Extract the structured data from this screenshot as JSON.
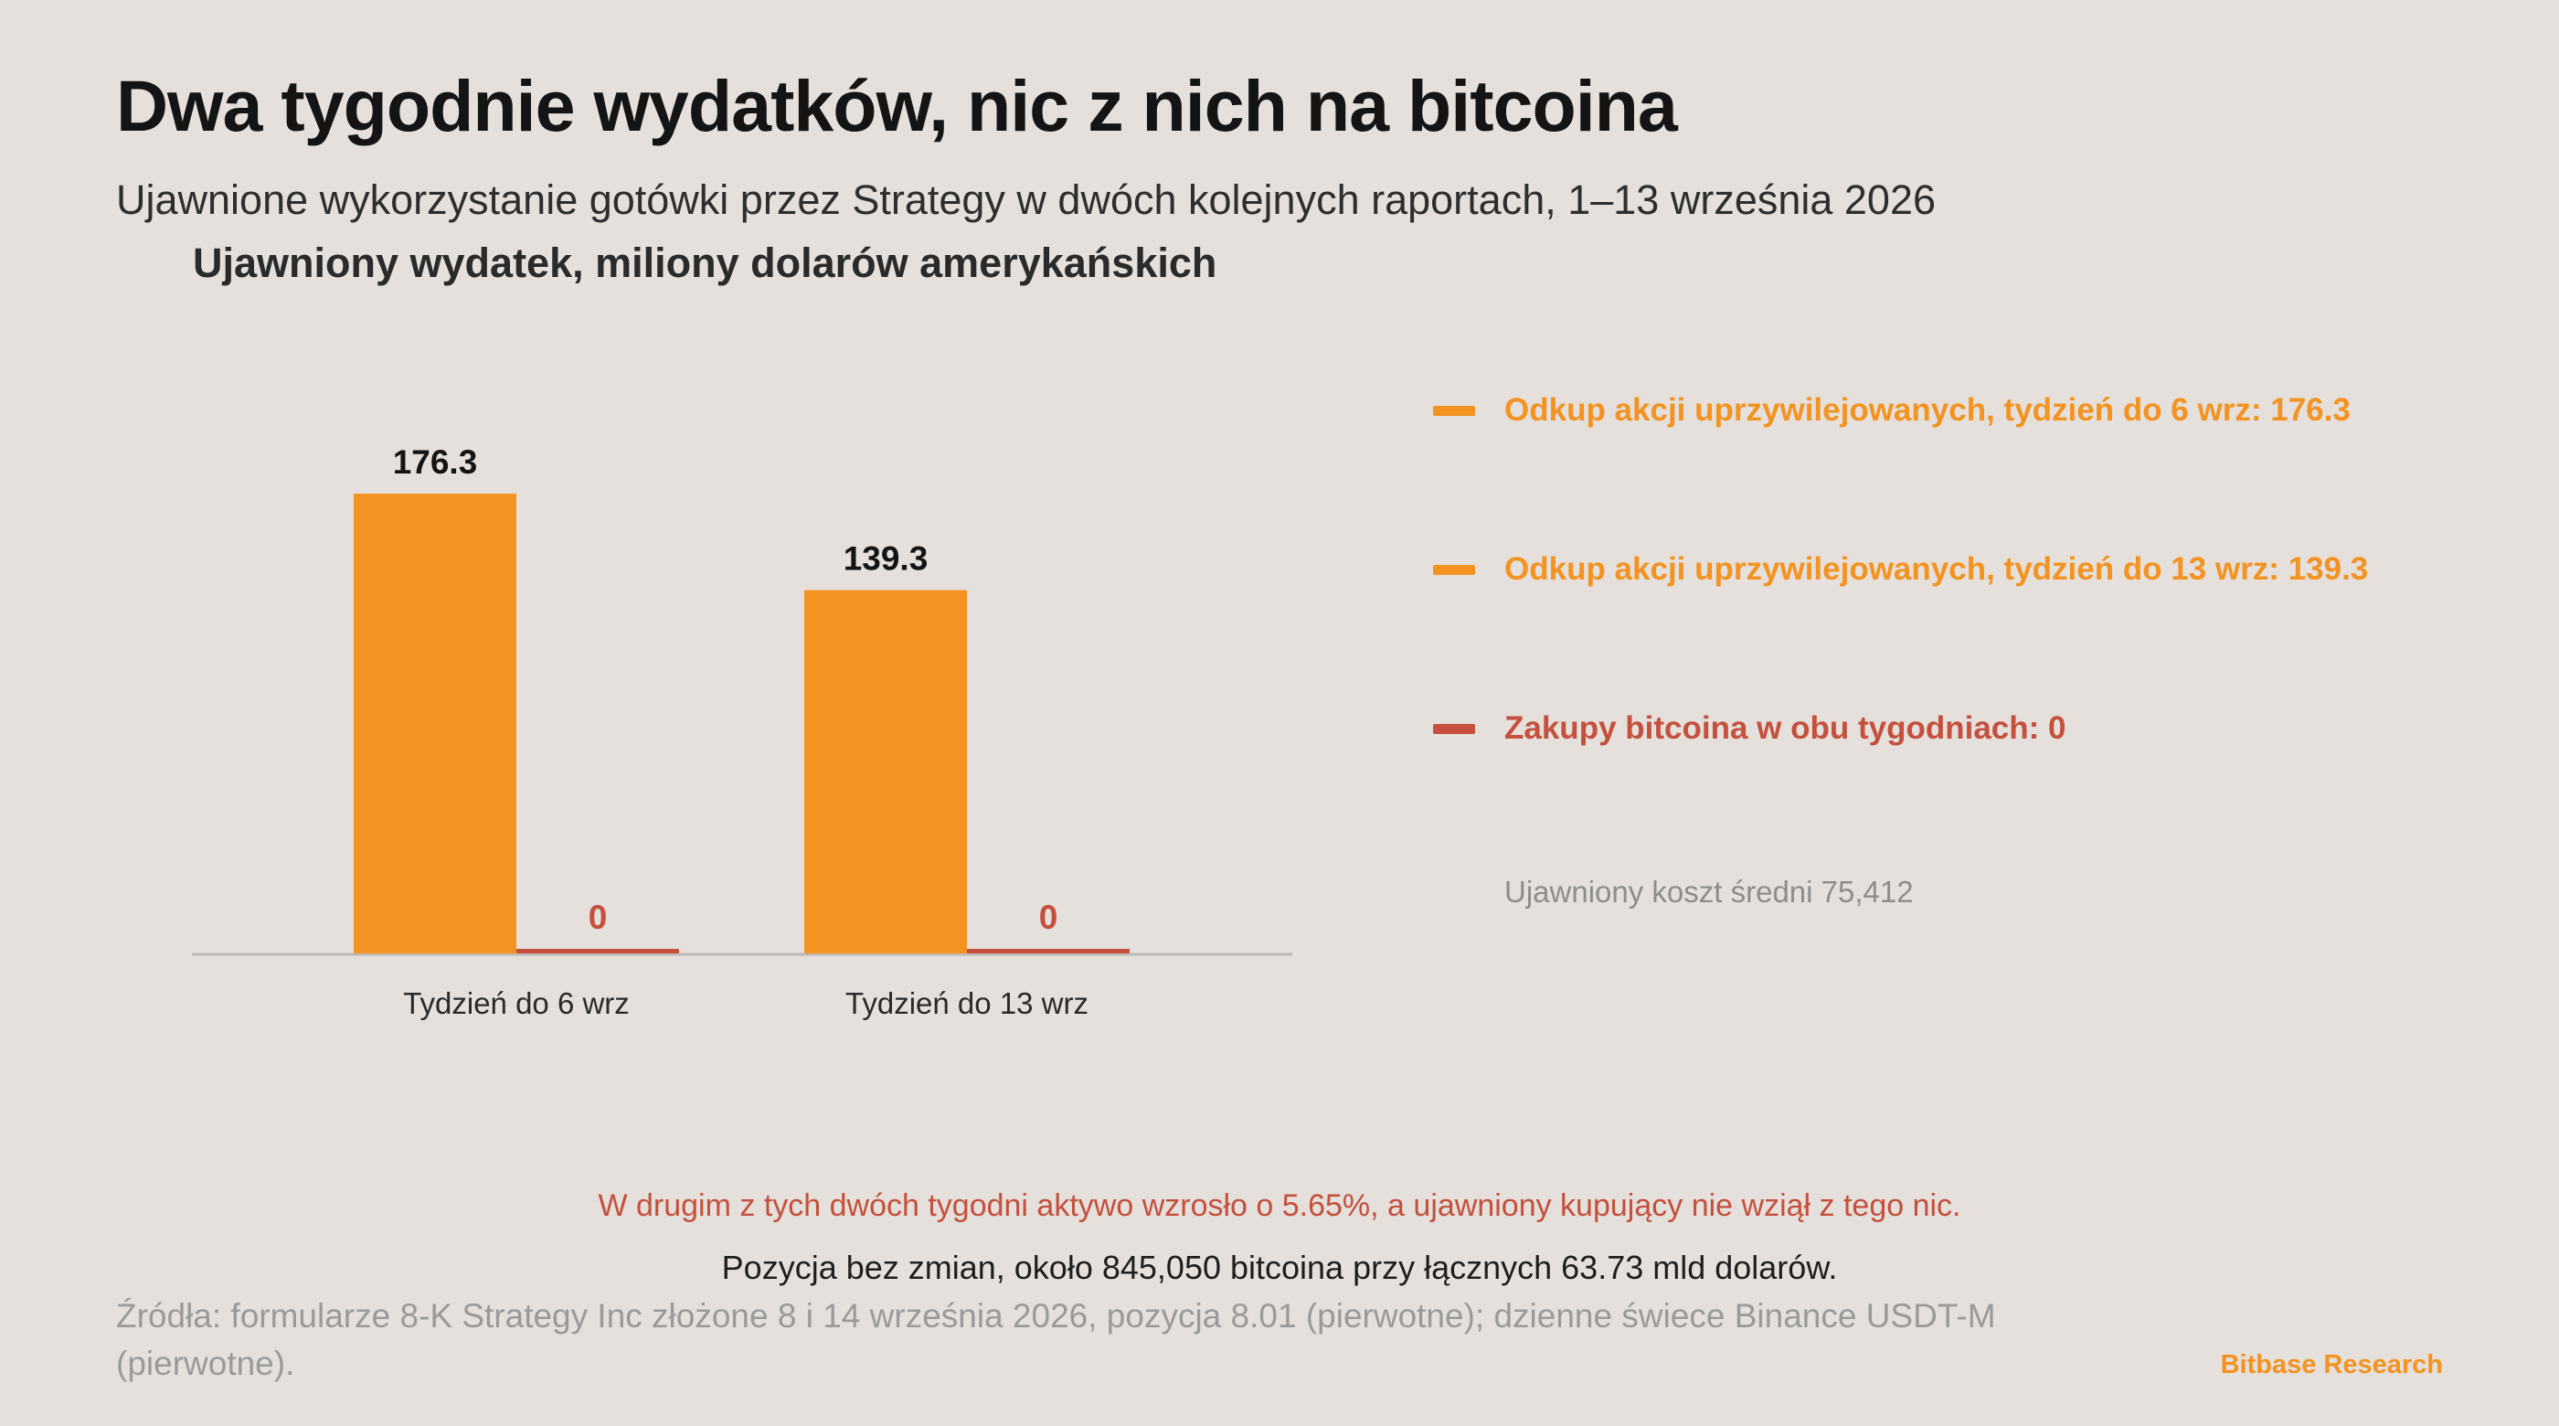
{
  "header": {
    "title": "Dwa tygodnie wydatków, nic z nich na bitcoina",
    "subtitle": "Ujawnione wykorzystanie gotówki przez Strategy w dwóch kolejnych raportach, 1–13 września 2026"
  },
  "chart_data": {
    "type": "bar",
    "ylabel": "Ujawniony wydatek, miliony dolarów amerykańskich",
    "xlabel": "",
    "categories": [
      "Tydzień do 6 wrz",
      "Tydzień do 13 wrz"
    ],
    "series": [
      {
        "values": [
          176.3,
          139.3
        ],
        "color": "#f39321"
      },
      {
        "values": [
          0,
          0
        ],
        "color": "#c4503d"
      }
    ],
    "data_labels": [
      [
        "176.3",
        "139.3"
      ],
      [
        "0",
        "0"
      ]
    ],
    "ylim": [
      0,
      176.3
    ],
    "grid": false,
    "legend_position": "right"
  },
  "legend": {
    "items": [
      {
        "label": "Odkup akcji uprzywilejowanych, tydzień do 6 wrz: 176.3",
        "color": "#f39321"
      },
      {
        "label": "Odkup akcji uprzywilejowanych, tydzień do 13 wrz: 139.3",
        "color": "#f39321"
      },
      {
        "label": "Zakupy bitcoina w obu tygodniach: 0",
        "color": "#c4503d"
      }
    ],
    "note": "Ujawniony koszt średni 75,412"
  },
  "footer": {
    "note_red": "W drugim z tych dwóch tygodni aktywo wzrosło o 5.65%, a ujawniony kupujący nie wziął z tego nic.",
    "note_dark": "Pozycja bez zmian, około 845,050 bitcoina przy łącznych 63.73 mld dolarów.",
    "sources": "Źródła: formularze 8-K Strategy Inc złożone 8 i 14 września 2026, pozycja 8.01 (pierwotne); dzienne świece Binance USDT-M (pierwotne).",
    "brand": "Bitbase Research"
  },
  "colors": {
    "background": "#e5e0db",
    "accent": "#f39321",
    "red": "#c4503d",
    "axis": "#bdb8b3"
  }
}
